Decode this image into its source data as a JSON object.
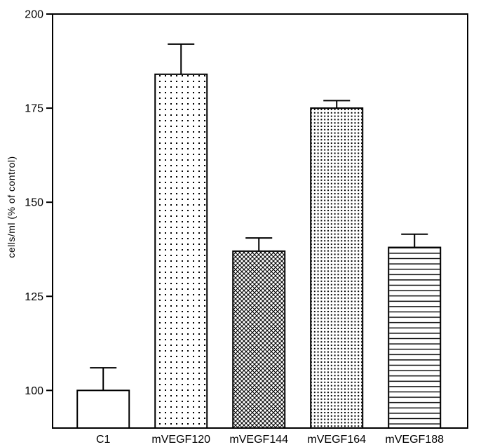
{
  "chart_data": {
    "type": "bar",
    "title": "",
    "xlabel": "",
    "ylabel": "cells/ml (% of control)",
    "categories": [
      "C1",
      "mVEGF120",
      "mVEGF144",
      "mVEGF164",
      "mVEGF188"
    ],
    "values": [
      100,
      184,
      137,
      175,
      138
    ],
    "errors_up": [
      6,
      8,
      3.5,
      2,
      3.5
    ],
    "yticks": [
      100,
      125,
      150,
      175,
      200
    ],
    "ylim": [
      90,
      200
    ],
    "bar_patterns": [
      "none",
      "dots-sparse",
      "crosshatch",
      "dots-dense",
      "hlines"
    ],
    "bar_fill_background": "#ffffff",
    "pattern_color": "#000000",
    "bar_border_color": "#000000",
    "axis_color": "#000000",
    "background_color": "#ffffff",
    "frame": "box",
    "grid": false,
    "legend": "none"
  }
}
